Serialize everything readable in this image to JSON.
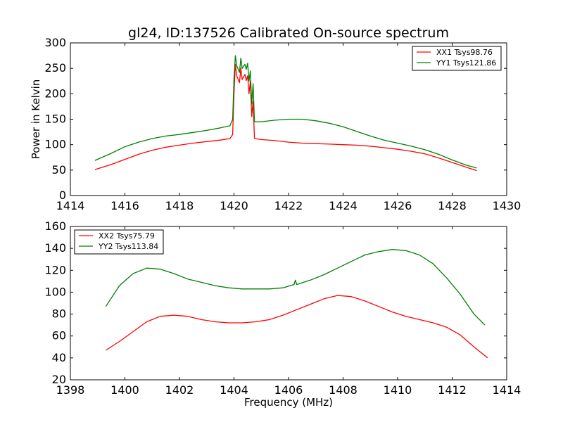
{
  "title": "gl24, ID:137526 Calibrated On-source spectrum",
  "colors": {
    "red": "#ff0000",
    "green": "#008000"
  },
  "chart_data": [
    {
      "type": "line",
      "title": "gl24, ID:137526 Calibrated On-source spectrum",
      "xlabel": "",
      "ylabel": "Power in Kelvin",
      "xlim": [
        1414,
        1430
      ],
      "ylim": [
        0,
        300
      ],
      "xticks": [
        1414,
        1416,
        1418,
        1420,
        1422,
        1424,
        1426,
        1428,
        1430
      ],
      "yticks": [
        0,
        50,
        100,
        150,
        200,
        250,
        300
      ],
      "legend_position": "top-right",
      "series": [
        {
          "name": "XX1 Tsys98.76",
          "color": "#ff0000",
          "points": [
            [
              1414.9,
              51
            ],
            [
              1415.5,
              61
            ],
            [
              1416.0,
              71
            ],
            [
              1416.5,
              81
            ],
            [
              1417.0,
              89
            ],
            [
              1417.5,
              95
            ],
            [
              1418.0,
              99
            ],
            [
              1418.5,
              103
            ],
            [
              1419.0,
              106
            ],
            [
              1419.5,
              109
            ],
            [
              1419.85,
              112
            ],
            [
              1419.95,
              120
            ],
            [
              1420.0,
              200
            ],
            [
              1420.05,
              258
            ],
            [
              1420.1,
              235
            ],
            [
              1420.2,
              222
            ],
            [
              1420.25,
              250
            ],
            [
              1420.3,
              228
            ],
            [
              1420.4,
              238
            ],
            [
              1420.45,
              226
            ],
            [
              1420.5,
              235
            ],
            [
              1420.55,
              200
            ],
            [
              1420.6,
              225
            ],
            [
              1420.65,
              155
            ],
            [
              1420.7,
              185
            ],
            [
              1420.75,
              112
            ],
            [
              1421.0,
              110
            ],
            [
              1421.5,
              108
            ],
            [
              1422.0,
              105
            ],
            [
              1422.5,
              103
            ],
            [
              1423.0,
              102
            ],
            [
              1423.5,
              101
            ],
            [
              1424.0,
              100
            ],
            [
              1424.5,
              99
            ],
            [
              1425.0,
              97
            ],
            [
              1425.5,
              94
            ],
            [
              1426.0,
              91
            ],
            [
              1426.5,
              87
            ],
            [
              1427.0,
              82
            ],
            [
              1427.5,
              74
            ],
            [
              1428.0,
              65
            ],
            [
              1428.5,
              56
            ],
            [
              1428.9,
              49
            ]
          ]
        },
        {
          "name": "YY1 Tsys121.86",
          "color": "#008000",
          "points": [
            [
              1414.9,
              69
            ],
            [
              1415.5,
              83
            ],
            [
              1416.0,
              96
            ],
            [
              1416.5,
              105
            ],
            [
              1417.0,
              112
            ],
            [
              1417.5,
              117
            ],
            [
              1418.0,
              120
            ],
            [
              1418.5,
              124
            ],
            [
              1419.0,
              128
            ],
            [
              1419.5,
              133
            ],
            [
              1419.85,
              137
            ],
            [
              1419.95,
              150
            ],
            [
              1420.0,
              230
            ],
            [
              1420.05,
              275
            ],
            [
              1420.1,
              255
            ],
            [
              1420.2,
              242
            ],
            [
              1420.25,
              270
            ],
            [
              1420.3,
              250
            ],
            [
              1420.4,
              258
            ],
            [
              1420.45,
              248
            ],
            [
              1420.5,
              260
            ],
            [
              1420.55,
              225
            ],
            [
              1420.6,
              245
            ],
            [
              1420.65,
              180
            ],
            [
              1420.7,
              220
            ],
            [
              1420.75,
              145
            ],
            [
              1421.0,
              145
            ],
            [
              1421.5,
              148
            ],
            [
              1422.0,
              150
            ],
            [
              1422.5,
              150
            ],
            [
              1423.0,
              147
            ],
            [
              1423.5,
              142
            ],
            [
              1424.0,
              135
            ],
            [
              1424.5,
              126
            ],
            [
              1425.0,
              117
            ],
            [
              1425.5,
              109
            ],
            [
              1426.0,
              103
            ],
            [
              1426.5,
              97
            ],
            [
              1427.0,
              90
            ],
            [
              1427.5,
              81
            ],
            [
              1428.0,
              70
            ],
            [
              1428.5,
              60
            ],
            [
              1428.9,
              54
            ]
          ]
        }
      ]
    },
    {
      "type": "line",
      "title": "",
      "xlabel": "Frequency (MHz)",
      "ylabel": "",
      "xlim": [
        1398,
        1414
      ],
      "ylim": [
        20,
        160
      ],
      "xticks": [
        1398,
        1400,
        1402,
        1404,
        1406,
        1408,
        1410,
        1412,
        1414
      ],
      "yticks": [
        20,
        40,
        60,
        80,
        100,
        120,
        140,
        160
      ],
      "legend_position": "top-left",
      "series": [
        {
          "name": "XX2 Tsys75.79",
          "color": "#ff0000",
          "points": [
            [
              1399.3,
              47
            ],
            [
              1399.8,
              55
            ],
            [
              1400.3,
              64
            ],
            [
              1400.8,
              73
            ],
            [
              1401.3,
              78
            ],
            [
              1401.8,
              79
            ],
            [
              1402.3,
              78
            ],
            [
              1402.8,
              75
            ],
            [
              1403.3,
              73
            ],
            [
              1403.8,
              72
            ],
            [
              1404.3,
              72
            ],
            [
              1404.8,
              73
            ],
            [
              1405.3,
              75
            ],
            [
              1405.8,
              79
            ],
            [
              1406.3,
              84
            ],
            [
              1406.8,
              89
            ],
            [
              1407.3,
              94
            ],
            [
              1407.8,
              97
            ],
            [
              1408.3,
              96
            ],
            [
              1408.8,
              92
            ],
            [
              1409.3,
              87
            ],
            [
              1409.8,
              82
            ],
            [
              1410.3,
              78
            ],
            [
              1410.8,
              75
            ],
            [
              1411.3,
              72
            ],
            [
              1411.8,
              68
            ],
            [
              1412.3,
              61
            ],
            [
              1412.8,
              50
            ],
            [
              1413.3,
              40
            ]
          ]
        },
        {
          "name": "YY2 Tsys113.84",
          "color": "#008000",
          "points": [
            [
              1399.3,
              87
            ],
            [
              1399.8,
              106
            ],
            [
              1400.3,
              117
            ],
            [
              1400.8,
              122
            ],
            [
              1401.3,
              121
            ],
            [
              1401.8,
              117
            ],
            [
              1402.3,
              112
            ],
            [
              1402.8,
              109
            ],
            [
              1403.3,
              106
            ],
            [
              1403.8,
              104
            ],
            [
              1404.3,
              103
            ],
            [
              1404.8,
              103
            ],
            [
              1405.3,
              103
            ],
            [
              1405.8,
              104
            ],
            [
              1406.2,
              107
            ],
            [
              1406.25,
              111
            ],
            [
              1406.3,
              107
            ],
            [
              1406.8,
              111
            ],
            [
              1407.3,
              116
            ],
            [
              1407.8,
              122
            ],
            [
              1408.3,
              128
            ],
            [
              1408.8,
              134
            ],
            [
              1409.3,
              137
            ],
            [
              1409.8,
              139
            ],
            [
              1410.3,
              138
            ],
            [
              1410.8,
              134
            ],
            [
              1411.3,
              126
            ],
            [
              1411.8,
              113
            ],
            [
              1412.3,
              98
            ],
            [
              1412.8,
              80
            ],
            [
              1413.2,
              70
            ]
          ]
        }
      ]
    }
  ]
}
